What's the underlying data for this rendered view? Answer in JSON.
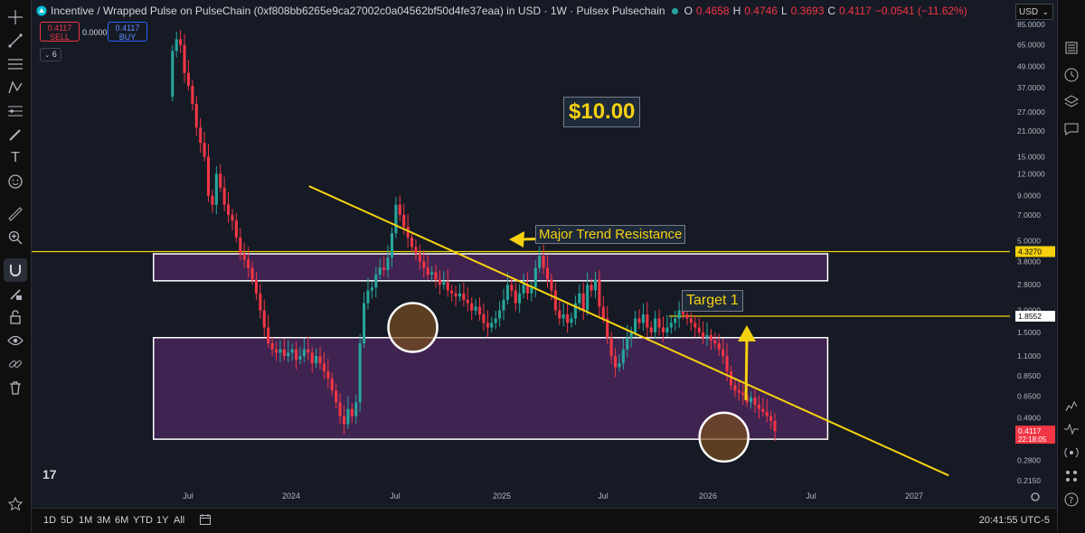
{
  "header": {
    "title": "Incentive / Wrapped Pulse on PulseChain (0xf808bb6265e9ca27002c0a04562bf50d4fe37eaa) in USD · 1W · Pulsex Pulsechain",
    "o_label": "O",
    "o_val": "0.4658",
    "h_label": "H",
    "h_val": "0.4746",
    "l_label": "L",
    "l_val": "0.3693",
    "c_label": "C",
    "c_val": "0.4117",
    "change": "−0.0541 (−11.62%)"
  },
  "trade": {
    "sell_price": "0.4117",
    "sell_label": "SELL",
    "spread": "0.0000",
    "buy_price": "0.4117",
    "buy_label": "BUY"
  },
  "indicators_count": "6",
  "currency": "USD",
  "timeframes": [
    "1D",
    "5D",
    "1M",
    "3M",
    "6M",
    "YTD",
    "1Y",
    "All"
  ],
  "clock": "20:41:55 UTC-5",
  "annotations": {
    "big_target": "$10.00",
    "resistance": "Major Trend Resistance",
    "target1": "Target 1"
  },
  "colors": {
    "up": "#26a69a",
    "down": "#f23645",
    "trend": "#f5d10f",
    "zone_fill": "#5b2a6e",
    "background": "#161a25"
  },
  "chart_data": {
    "type": "candlestick",
    "title": "Incentive / Wrapped Pulse on PulseChain · 1W",
    "y_scale": "log",
    "y_ticks": [
      "85.0000",
      "65.0000",
      "49.0000",
      "37.0000",
      "27.0000",
      "21.0000",
      "15.0000",
      "12.0000",
      "9.0000",
      "7.0000",
      "5.0000",
      "3.8000",
      "2.8000",
      "2.0000",
      "1.5000",
      "1.1000",
      "0.8500",
      "0.6500",
      "0.4900",
      "0.2800",
      "0.2150"
    ],
    "x_ticks": [
      "Jul",
      "2024",
      "Jul",
      "2025",
      "Jul",
      "2026",
      "Jul",
      "2027"
    ],
    "price_labels": [
      {
        "value": "4.3270",
        "style": "yellow"
      },
      {
        "value": "1.8552",
        "style": "white"
      },
      {
        "value": "0.4117",
        "sub": "22:18:05",
        "style": "red"
      }
    ],
    "levels": [
      {
        "name": "horizontal-resistance",
        "value": 4.327
      },
      {
        "name": "target-1",
        "value": 1.8552
      }
    ],
    "trendline": {
      "from": {
        "date": "2024-02",
        "price": 10.2
      },
      "to": {
        "date": "2027-03",
        "price": 0.23
      }
    },
    "zones": [
      {
        "name": "upper-zone",
        "from": "2023-05",
        "to": "2026-08",
        "top": 4.2,
        "bottom": 2.95
      },
      {
        "name": "lower-zone",
        "from": "2023-05",
        "to": "2026-08",
        "top": 1.4,
        "bottom": 0.37
      }
    ],
    "circles": [
      {
        "date": "2024-08",
        "price": 1.6
      },
      {
        "date": "2026-02",
        "price": 0.38
      }
    ],
    "candles_close": [
      60,
      70,
      65,
      45,
      38,
      30,
      22,
      18,
      15,
      9,
      8,
      12,
      10,
      8,
      7,
      6.5,
      5.2,
      4.2,
      3.9,
      3.5,
      3.0,
      2.5,
      2.0,
      1.6,
      1.3,
      1.2,
      1.15,
      1.2,
      1.1,
      1.15,
      1.2,
      1.05,
      1.1,
      1.2,
      1.15,
      1.0,
      1.1,
      1.0,
      0.9,
      0.82,
      0.7,
      0.6,
      0.5,
      0.45,
      0.55,
      0.5,
      0.6,
      1.3,
      2.2,
      2.6,
      2.7,
      3.2,
      3.5,
      3.4,
      4.0,
      5.5,
      8.0,
      7.0,
      6.0,
      5.2,
      4.6,
      4.2,
      3.8,
      3.5,
      3.2,
      3.3,
      3.0,
      2.8,
      2.9,
      2.6,
      2.5,
      2.4,
      2.5,
      2.3,
      2.2,
      2.0,
      2.1,
      1.9,
      1.7,
      1.6,
      1.7,
      1.8,
      2.0,
      2.3,
      2.8,
      2.6,
      2.2,
      2.5,
      2.8,
      2.5,
      2.7,
      3.5,
      4.1,
      3.5,
      3.0,
      2.6,
      2.0,
      1.8,
      1.9,
      1.7,
      1.8,
      2.2,
      2.5,
      2.0,
      2.8,
      2.6,
      3.0,
      2.1,
      1.8,
      1.4,
      1.1,
      0.95,
      1.0,
      1.2,
      1.4,
      1.5,
      1.8,
      1.7,
      1.9,
      1.6,
      1.5,
      1.8,
      1.6,
      1.5,
      1.6,
      1.7,
      1.8,
      2.0,
      1.9,
      1.8,
      1.7,
      1.6,
      1.5,
      1.4,
      1.45,
      1.35,
      1.3,
      1.2,
      1.1,
      0.9,
      0.75,
      0.7,
      0.68,
      0.66,
      0.6,
      0.64,
      0.58,
      0.55,
      0.53,
      0.5,
      0.47,
      0.4117
    ]
  }
}
